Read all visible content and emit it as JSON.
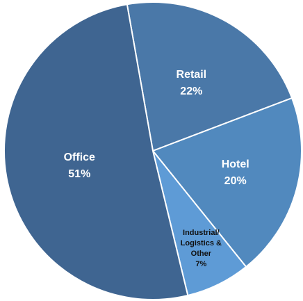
{
  "chart_data": {
    "type": "pie",
    "categories": [
      "Retail",
      "Hotel",
      "Industrial/ Logistics & Other",
      "Office"
    ],
    "values": [
      22,
      20,
      7,
      51
    ],
    "value_labels": [
      "22%",
      "20%",
      "7%",
      "51%"
    ],
    "colors": [
      "#4a78a8",
      "#5189be",
      "#5e9bd6",
      "#3f6591"
    ]
  }
}
